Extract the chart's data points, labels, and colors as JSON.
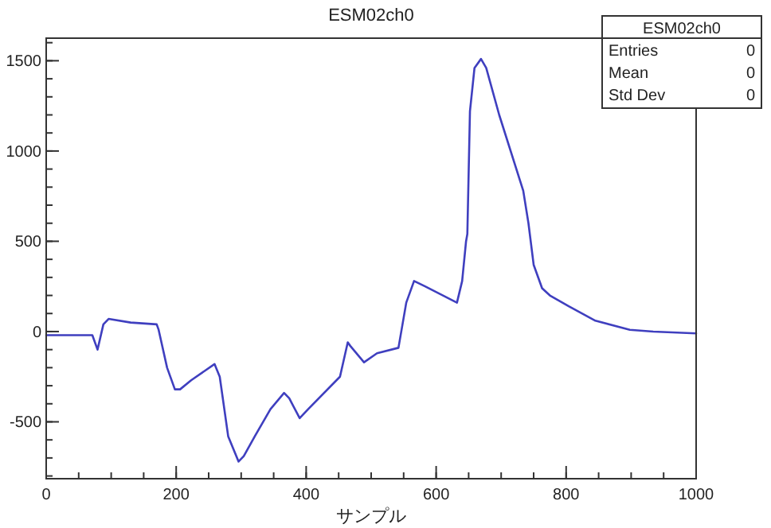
{
  "chart_data": {
    "type": "line",
    "title": "ESM02ch0",
    "xlabel": "サンプル",
    "annotations": [
      "ESM02ch0",
      "Entries",
      "0",
      "Mean",
      "0",
      "Std Dev",
      "0"
    ],
    "xlim": [
      0,
      1000
    ],
    "xticks": [
      0,
      200,
      400,
      600,
      800,
      1000
    ],
    "ylim": [
      -815,
      1625
    ],
    "yticks": [
      -500,
      0,
      500,
      1000,
      1500
    ],
    "grid": false,
    "marker": "none",
    "line_style": "solid",
    "series": [
      {
        "color": "#3f3fbf",
        "x": [
          0,
          40,
          71,
          79,
          88,
          96,
          130,
          170,
          173,
          186,
          198,
          206,
          223,
          259,
          267,
          280,
          296,
          304,
          321,
          345,
          366,
          374,
          390,
          403,
          452,
          464,
          468,
          489,
          509,
          542,
          554,
          566,
          583,
          632,
          640,
          646,
          648,
          652,
          659,
          669,
          677,
          697,
          734,
          742,
          750,
          763,
          775,
          804,
          845,
          898,
          934,
          1000
        ],
        "values": [
          -20,
          -20,
          -20,
          -100,
          40,
          70,
          50,
          40,
          10,
          -200,
          -320,
          -320,
          -270,
          -180,
          -250,
          -580,
          -720,
          -690,
          -580,
          -430,
          -340,
          -370,
          -480,
          -430,
          -250,
          -60,
          -80,
          -170,
          -120,
          -90,
          160,
          280,
          250,
          160,
          280,
          500,
          540,
          1220,
          1460,
          1510,
          1460,
          1200,
          780,
          600,
          370,
          240,
          200,
          140,
          60,
          10,
          0,
          -10
        ]
      }
    ]
  }
}
